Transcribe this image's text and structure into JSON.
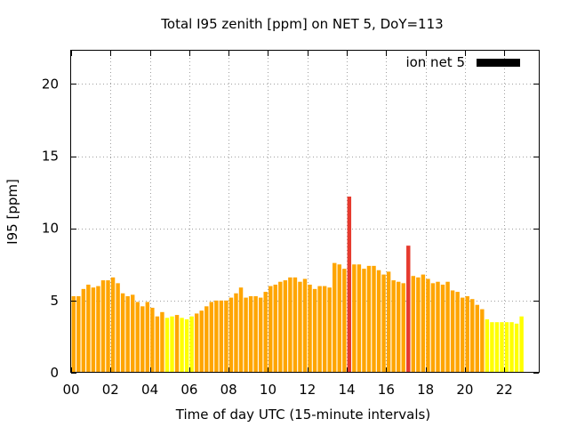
{
  "chart_data": {
    "type": "bar",
    "title": "Total I95 zenith [ppm] on NET 5, DoY=113",
    "xlabel": "Time of day UTC (15-minute intervals)",
    "ylabel": "I95 [ppm]",
    "xlim": [
      0,
      23.75
    ],
    "ylim": [
      0,
      22.3
    ],
    "x_ticks": [
      "00",
      "02",
      "04",
      "06",
      "08",
      "10",
      "12",
      "14",
      "16",
      "18",
      "20",
      "22"
    ],
    "y_ticks": [
      "0",
      "5",
      "10",
      "15",
      "20"
    ],
    "grid": true,
    "legend": {
      "position": "top-right",
      "entries": [
        {
          "name": "ion net 5",
          "color": "#000000"
        }
      ]
    },
    "colors": {
      "orange": "#ffa500",
      "yellow": "#ffff00",
      "red": "#e63a2e"
    },
    "interval_hours": 0.25,
    "values": [
      5.3,
      5.3,
      5.8,
      6.1,
      5.9,
      6.0,
      6.4,
      6.4,
      6.6,
      6.2,
      5.5,
      5.3,
      5.4,
      4.9,
      4.6,
      4.9,
      4.5,
      3.9,
      4.2,
      3.8,
      3.9,
      4.0,
      3.8,
      3.7,
      3.9,
      4.1,
      4.3,
      4.6,
      4.9,
      5.0,
      5.0,
      5.0,
      5.2,
      5.5,
      5.9,
      5.2,
      5.3,
      5.3,
      5.2,
      5.6,
      6.0,
      6.1,
      6.3,
      6.4,
      6.6,
      6.6,
      6.3,
      6.5,
      6.1,
      5.8,
      6.0,
      6.0,
      5.9,
      7.6,
      7.5,
      7.2,
      12.2,
      7.5,
      7.5,
      7.2,
      7.4,
      7.4,
      7.1,
      6.8,
      7.0,
      6.4,
      6.3,
      6.2,
      8.8,
      6.7,
      6.6,
      6.8,
      6.5,
      6.2,
      6.3,
      6.1,
      6.3,
      5.7,
      5.6,
      5.2,
      5.3,
      5.1,
      4.7,
      4.4,
      3.7,
      3.5,
      3.5,
      3.5,
      3.5,
      3.5,
      3.4,
      3.9
    ],
    "bar_colors": [
      "orange",
      "orange",
      "orange",
      "orange",
      "orange",
      "orange",
      "orange",
      "orange",
      "orange",
      "orange",
      "orange",
      "orange",
      "orange",
      "orange",
      "orange",
      "orange",
      "orange",
      "orange",
      "orange",
      "yellow",
      "yellow",
      "orange",
      "yellow",
      "yellow",
      "yellow",
      "orange",
      "orange",
      "orange",
      "orange",
      "orange",
      "orange",
      "orange",
      "orange",
      "orange",
      "orange",
      "orange",
      "orange",
      "orange",
      "orange",
      "orange",
      "orange",
      "orange",
      "orange",
      "orange",
      "orange",
      "orange",
      "orange",
      "orange",
      "orange",
      "orange",
      "orange",
      "orange",
      "orange",
      "orange",
      "orange",
      "orange",
      "red",
      "orange",
      "orange",
      "orange",
      "orange",
      "orange",
      "orange",
      "orange",
      "orange",
      "orange",
      "orange",
      "orange",
      "red",
      "orange",
      "orange",
      "orange",
      "orange",
      "orange",
      "orange",
      "orange",
      "orange",
      "orange",
      "orange",
      "orange",
      "orange",
      "orange",
      "orange",
      "orange",
      "yellow",
      "yellow",
      "yellow",
      "yellow",
      "yellow",
      "yellow",
      "yellow",
      "yellow"
    ]
  }
}
